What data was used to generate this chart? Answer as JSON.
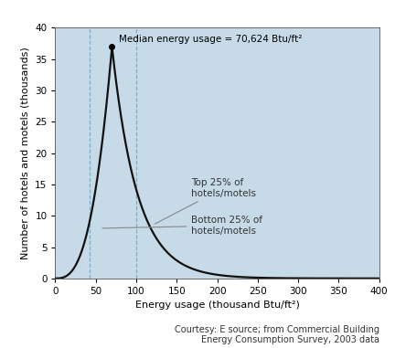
{
  "xlabel": "Energy usage (thousand Btu/ft²)",
  "ylabel": "Number of hotels and motels (thousands)",
  "xlim": [
    0,
    400
  ],
  "ylim": [
    0,
    40
  ],
  "xticks": [
    0,
    50,
    100,
    150,
    200,
    250,
    300,
    350,
    400
  ],
  "yticks": [
    0,
    5,
    10,
    15,
    20,
    25,
    30,
    35,
    40
  ],
  "median": 70.0,
  "peak_y": 37,
  "bg_color": "#c6dae8",
  "line_color": "#111111",
  "vline_color": "#7aaec8",
  "annotation_median": "Median energy usage = 70,624 Btu/ft²",
  "annotation_top25": "Top 25% of\nhotels/motels",
  "annotation_bot25": "Bottom 25% of\nhotels/motels",
  "courtesy": "Courtesy: E source; from Commercial Building\nEnergy Consumption Survey, 2003 data",
  "bottom25_x": 42,
  "top25_x": 100,
  "font_size_annotation": 7.5,
  "font_size_axis": 7.5,
  "font_size_courtesy": 7.0
}
